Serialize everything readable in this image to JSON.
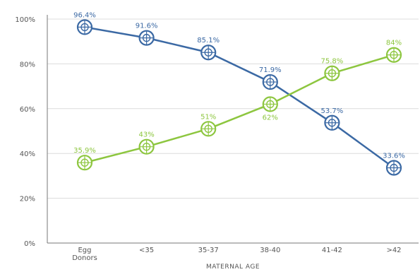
{
  "chart_data": {
    "type": "line",
    "title": "",
    "xlabel": "MATERNAL AGE",
    "ylabel": "",
    "categories": [
      [
        "Egg",
        "Donors"
      ],
      [
        "<35"
      ],
      [
        "35-37"
      ],
      [
        "38-40"
      ],
      [
        "41-42"
      ],
      [
        ">42"
      ]
    ],
    "ylim": [
      0,
      100
    ],
    "yticks": [
      "0%",
      "20%",
      "40%",
      "60%",
      "80%",
      "100%"
    ],
    "yticks_values": [
      0,
      20,
      40,
      60,
      80,
      100
    ],
    "grid": true,
    "legend": "none",
    "series": [
      {
        "values": [
          96.4,
          91.6,
          85.1,
          71.9,
          53.7,
          33.6
        ],
        "labels": [
          "96.4%",
          "91.6%",
          "85.1%",
          "71.9%",
          "53.7%",
          "33.6%"
        ],
        "color": "#3b69a4"
      },
      {
        "values": [
          35.9,
          43,
          51,
          62,
          75.8,
          84
        ],
        "labels": [
          "35.9%",
          "43%",
          "51%",
          "62%",
          "75.8%",
          "84%"
        ],
        "color": "#8dc63f"
      }
    ]
  }
}
